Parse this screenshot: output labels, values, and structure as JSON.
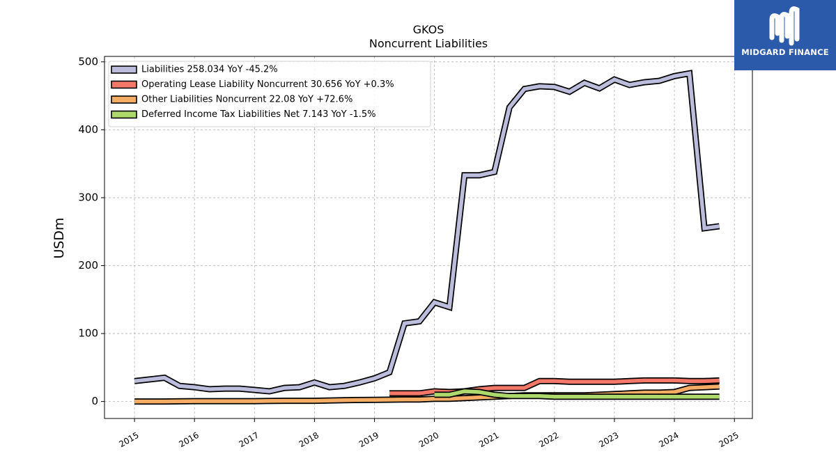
{
  "colors": {
    "liabilities": "#bcbcdc",
    "operating_lease": "#f4786a",
    "other_noncurrent": "#f5ad65",
    "deferred_tax": "#acd86c",
    "logo_bg": "#2b5aab"
  },
  "logo": {
    "text": "MIDGARD FINANCE",
    "icon": "midgard-logo-icon"
  },
  "chart_data": {
    "type": "line",
    "title": "GKOS",
    "subtitle": "Noncurrent  Liabilities",
    "ylabel": "USDm",
    "xlabel": "",
    "ylim": [
      -25,
      508
    ],
    "xlim": [
      2014.5,
      2025.3
    ],
    "yticks": [
      0,
      100,
      200,
      300,
      400,
      500
    ],
    "xticks": [
      "2015",
      "2016",
      "2017",
      "2018",
      "2019",
      "2020",
      "2021",
      "2022",
      "2023",
      "2024",
      "2025"
    ],
    "grid": true,
    "legend_position": "top-left",
    "series": [
      {
        "key": "liabilities",
        "name": "Liabilities",
        "legend": "Liabilities  258.034 YoY -45.2%",
        "x": [
          2015.0,
          2015.5,
          2015.75,
          2016.0,
          2016.25,
          2016.5,
          2016.75,
          2017.0,
          2017.25,
          2017.5,
          2017.75,
          2018.0,
          2018.25,
          2018.5,
          2018.75,
          2019.0,
          2019.25,
          2019.5,
          2019.75,
          2020.0,
          2020.25,
          2020.5,
          2020.75,
          2021.0,
          2021.25,
          2021.5,
          2021.75,
          2022.0,
          2022.25,
          2022.5,
          2022.75,
          2023.0,
          2023.25,
          2023.5,
          2023.75,
          2024.0,
          2024.25,
          2024.5,
          2024.75
        ],
        "values": [
          30,
          35,
          23,
          21,
          18,
          19,
          19,
          17,
          15,
          20,
          21,
          28,
          21,
          23,
          28,
          34,
          43,
          115,
          118,
          146,
          139,
          333,
          333,
          338,
          433,
          460,
          464,
          463,
          456,
          469,
          461,
          474,
          466,
          470,
          472,
          479,
          483,
          255,
          258
        ]
      },
      {
        "key": "operating_lease",
        "name": "Operating Lease Liability Noncurrent",
        "legend": "Operating Lease Liability Noncurrent  30.656 YoY +0.3%",
        "x": [
          2019.25,
          2019.5,
          2019.75,
          2020.0,
          2020.25,
          2020.5,
          2020.75,
          2021.0,
          2021.25,
          2021.5,
          2021.75,
          2022.0,
          2022.25,
          2022.5,
          2022.75,
          2023.0,
          2023.25,
          2023.5,
          2023.75,
          2024.0,
          2024.25,
          2024.5,
          2024.75
        ],
        "values": [
          12,
          12,
          12,
          15,
          14,
          15,
          18,
          20,
          20,
          20,
          30,
          30,
          29,
          29,
          29,
          29,
          30,
          31,
          31,
          31,
          30,
          30,
          31
        ]
      },
      {
        "key": "other_noncurrent",
        "name": "Other Liabilities Noncurrent",
        "legend": "Other Liabilities Noncurrent  22.08 YoY +72.6%",
        "x": [
          2015.0,
          2015.5,
          2016.0,
          2016.5,
          2017.0,
          2017.5,
          2018.0,
          2018.5,
          2019.0,
          2019.5,
          2019.75,
          2020.0,
          2020.25,
          2020.5,
          2020.75,
          2021.0,
          2021.25,
          2021.5,
          2021.75,
          2022.0,
          2022.25,
          2022.5,
          2022.75,
          2023.0,
          2023.25,
          2023.5,
          2023.75,
          2024.0,
          2024.25,
          2024.5,
          2024.75
        ],
        "values": [
          0,
          0,
          0.5,
          0.5,
          0.5,
          1,
          1,
          2,
          2.5,
          3,
          3,
          4,
          4,
          5,
          6,
          7,
          8,
          9,
          9,
          9,
          9,
          9,
          10,
          11,
          12,
          13,
          13,
          14,
          20,
          21,
          22
        ]
      },
      {
        "key": "deferred_tax",
        "name": "Deferred Income Tax Liabilities Net",
        "legend": "Deferred Income Tax Liabilities Net  7.143 YoY -1.5%",
        "x": [
          2020.0,
          2020.25,
          2020.5,
          2020.75,
          2021.0,
          2021.25,
          2021.5,
          2021.75,
          2022.0,
          2022.25,
          2022.5,
          2022.75,
          2023.0,
          2023.25,
          2023.5,
          2023.75,
          2024.0,
          2024.25,
          2024.5,
          2024.75
        ],
        "values": [
          10,
          10,
          15,
          14,
          10,
          8,
          8,
          8,
          7,
          7,
          7,
          7,
          7,
          7,
          7,
          7,
          7,
          7,
          7,
          7
        ]
      }
    ]
  }
}
